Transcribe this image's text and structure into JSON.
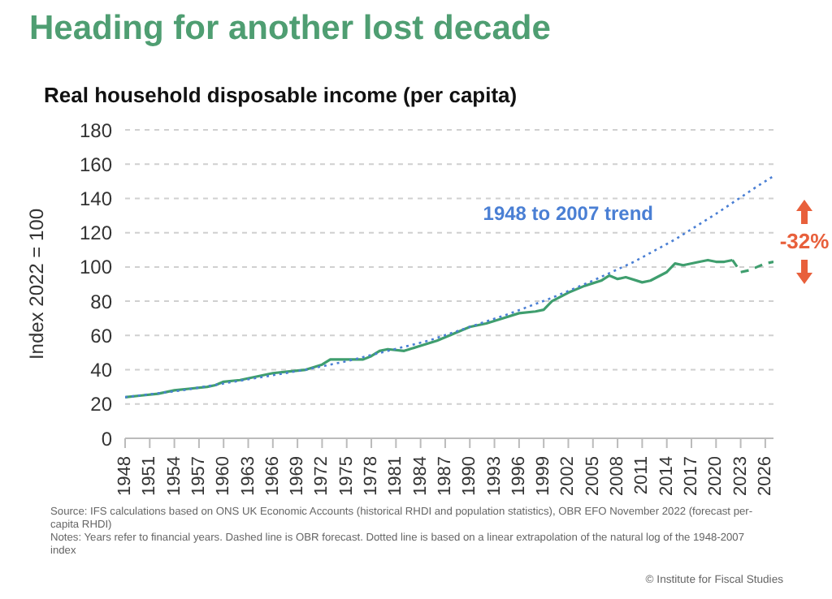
{
  "chart_data": {
    "type": "line",
    "title": "Heading for another lost decade",
    "subtitle": "Real household disposable income (per capita)",
    "ylabel": "Index 2022 = 100",
    "xlim": [
      1948,
      2027
    ],
    "xticks": [
      1948,
      1951,
      1954,
      1957,
      1960,
      1963,
      1966,
      1969,
      1972,
      1975,
      1978,
      1981,
      1984,
      1987,
      1990,
      1993,
      1996,
      1999,
      2002,
      2005,
      2008,
      2011,
      2014,
      2017,
      2020,
      2023,
      2026
    ],
    "ylim": [
      0,
      180
    ],
    "yticks": [
      0,
      20,
      40,
      60,
      80,
      100,
      120,
      140,
      160,
      180
    ],
    "grid": "y",
    "legend": false,
    "series": [
      {
        "color": "#3f9e6e",
        "line_style": "solid",
        "x": [
          1948,
          1950,
          1952,
          1954,
          1956,
          1958,
          1959,
          1960,
          1962,
          1964,
          1966,
          1968,
          1970,
          1972,
          1973,
          1974,
          1976,
          1977,
          1978,
          1979,
          1980,
          1982,
          1984,
          1986,
          1988,
          1990,
          1992,
          1994,
          1996,
          1998,
          1999,
          2000,
          2002,
          2004,
          2006,
          2007,
          2008,
          2009,
          2011,
          2012,
          2014,
          2015,
          2016,
          2018,
          2019,
          2020,
          2021,
          2022
        ],
        "values": [
          24,
          25,
          26,
          28,
          29,
          30,
          31,
          33,
          34,
          36,
          38,
          39,
          40,
          43,
          46,
          46,
          46,
          46,
          48,
          51,
          52,
          51,
          54,
          57,
          61,
          65,
          67,
          70,
          73,
          74,
          75,
          80,
          85,
          89,
          92,
          95,
          93,
          94,
          91,
          92,
          97,
          102,
          101,
          103,
          104,
          103,
          103,
          104
        ]
      },
      {
        "color": "#3f9e6e",
        "line_style": "dashed",
        "x": [
          2022,
          2023,
          2024,
          2025,
          2026,
          2027
        ],
        "values": [
          104,
          97,
          98,
          100,
          102,
          103
        ]
      },
      {
        "name": "1948 to 2007 trend",
        "color": "#4a7fd4",
        "line_style": "dotted",
        "x": [
          1948,
          1955,
          1960,
          1965,
          1970,
          1975,
          1980,
          1985,
          1990,
          1995,
          2000,
          2005,
          2010,
          2015,
          2020,
          2025,
          2027
        ],
        "values": [
          24,
          28,
          32,
          36,
          40,
          45,
          51,
          57,
          65,
          73,
          82,
          92,
          103,
          116,
          131,
          147,
          153
        ]
      }
    ],
    "annotations": [
      "-32%",
      "Source: IFS calculations based on ONS UK Economic Accounts (historical RHDI and population statistics), OBR EFO November 2022 (forecast per-capita RHDI)",
      "Notes: Years refer to financial years. Dashed line is OBR forecast. Dotted line is based on a linear extrapolation of the natural log of the 1948-2007 index",
      "© Institute for Fiscal Studies"
    ]
  }
}
